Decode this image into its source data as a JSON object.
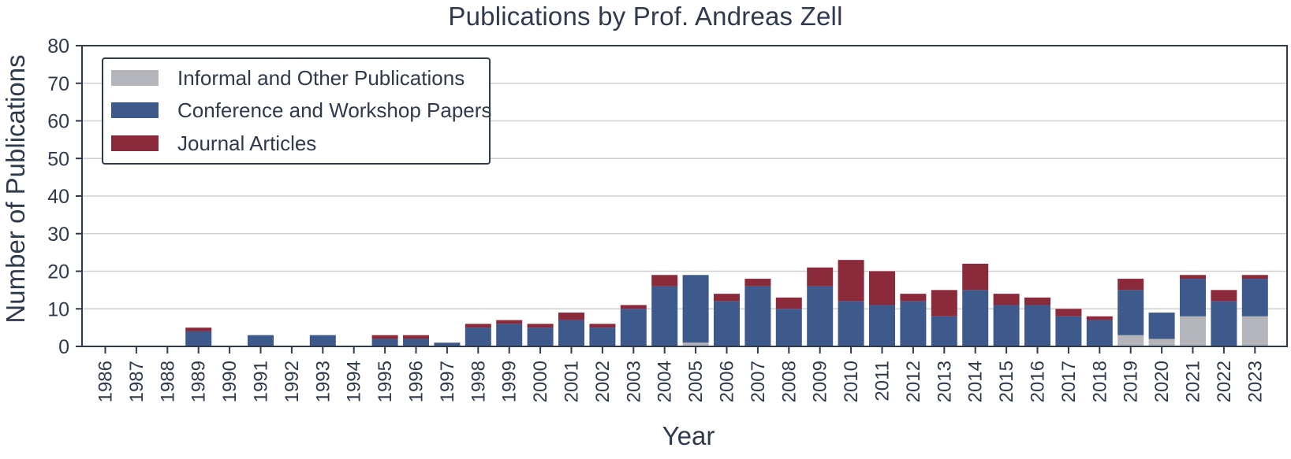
{
  "chart_data": {
    "type": "bar",
    "stacked": true,
    "title": "Publications by Prof. Andreas Zell",
    "xlabel": "Year",
    "ylabel": "Number of Publications",
    "ylim": [
      0,
      80
    ],
    "yticks": [
      0,
      10,
      20,
      30,
      40,
      50,
      60,
      70,
      80
    ],
    "grid": "horizontal",
    "legend_position": "top-left",
    "categories": [
      "1986",
      "1987",
      "1988",
      "1989",
      "1990",
      "1991",
      "1992",
      "1993",
      "1994",
      "1995",
      "1996",
      "1997",
      "1998",
      "1999",
      "2000",
      "2001",
      "2002",
      "2003",
      "2004",
      "2005",
      "2006",
      "2007",
      "2008",
      "2009",
      "2010",
      "2011",
      "2012",
      "2013",
      "2014",
      "2015",
      "2016",
      "2017",
      "2018",
      "2019",
      "2020",
      "2021",
      "2022",
      "2023"
    ],
    "series": [
      {
        "name": "Informal and Other Publications",
        "color": "#b3b5ba",
        "values": [
          0,
          0,
          0,
          0,
          0,
          0,
          0,
          0,
          0,
          0,
          0,
          0,
          0,
          0,
          0,
          0,
          0,
          0,
          0,
          1,
          0,
          0,
          0,
          0,
          0,
          0,
          0,
          0,
          0,
          0,
          0,
          0,
          0,
          3,
          2,
          8,
          0,
          8
        ]
      },
      {
        "name": "Conference and Workshop Papers",
        "color": "#3e5a8c",
        "values": [
          0,
          0,
          0,
          4,
          0,
          3,
          0,
          3,
          0,
          2,
          2,
          1,
          5,
          6,
          5,
          7,
          5,
          10,
          16,
          18,
          12,
          16,
          10,
          16,
          12,
          11,
          12,
          8,
          15,
          11,
          11,
          8,
          7,
          12,
          7,
          10,
          12,
          10
        ]
      },
      {
        "name": "Journal Articles",
        "color": "#8b2a3a",
        "values": [
          0,
          0,
          0,
          1,
          0,
          0,
          0,
          0,
          0,
          1,
          1,
          0,
          1,
          1,
          1,
          2,
          1,
          1,
          3,
          0,
          2,
          2,
          3,
          5,
          11,
          9,
          2,
          7,
          7,
          3,
          2,
          2,
          1,
          3,
          0,
          1,
          3,
          1
        ]
      }
    ]
  }
}
